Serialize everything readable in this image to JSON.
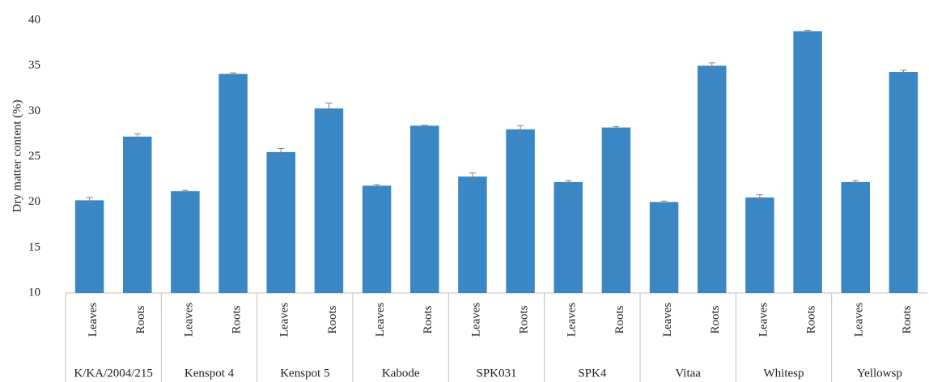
{
  "chart_data": {
    "type": "bar",
    "y_label": "Dry matter content (%)",
    "groups": [
      "K/KA/2004/215",
      "Kenspot 4",
      "Kenspot 5",
      "Kabode",
      "SPK031",
      "SPK4",
      "Vitaa",
      "Whitesp",
      "Yellowsp"
    ],
    "categories": [
      "Leaves",
      "Roots",
      "Leaves",
      "Roots",
      "Leaves",
      "Roots",
      "Leaves",
      "Roots",
      "Leaves",
      "Roots",
      "Leaves",
      "Roots",
      "Leaves",
      "Roots",
      "Leaves",
      "Roots",
      "Leaves",
      "Roots"
    ],
    "values": [
      20.2,
      27.2,
      21.2,
      34.1,
      25.5,
      30.3,
      21.8,
      28.4,
      22.8,
      28.0,
      22.2,
      28.2,
      20.0,
      35.0,
      20.5,
      38.8,
      22.2,
      34.3
    ],
    "errors": [
      0.3,
      0.3,
      0.1,
      0.1,
      0.4,
      0.6,
      0.1,
      0.05,
      0.4,
      0.4,
      0.15,
      0.1,
      0.1,
      0.3,
      0.3,
      0.1,
      0.15,
      0.2
    ],
    "color": "#3a87c6",
    "error_color": "#7f7f7f",
    "ylim": [
      10,
      40
    ],
    "yticks": [
      10,
      15,
      20,
      25,
      30,
      35,
      40
    ],
    "grid": false
  }
}
